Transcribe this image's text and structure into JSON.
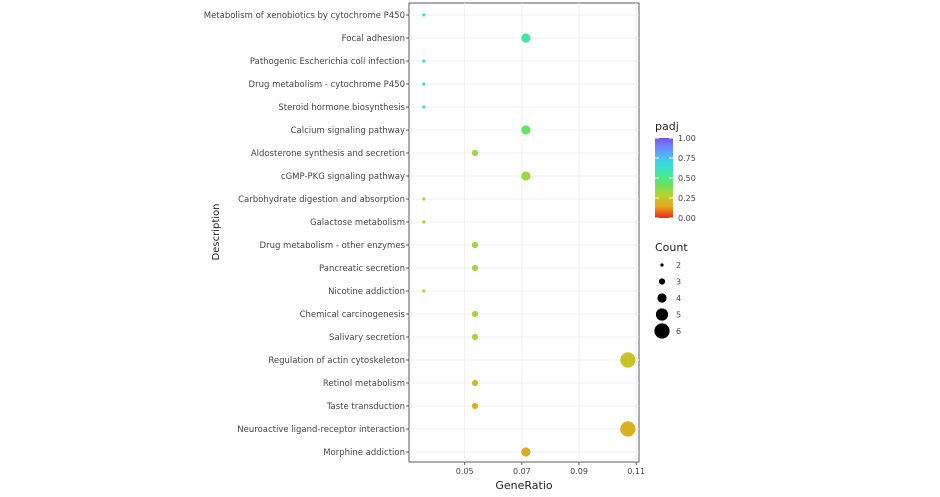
{
  "chart_data": {
    "type": "scatter",
    "xlabel": "GeneRatio",
    "ylabel": "Description",
    "xlim": [
      0.0305,
      0.111
    ],
    "x_ticks": [
      "0.05",
      "0.07",
      "0.09",
      "0.11"
    ],
    "x_tick_values": [
      0.05,
      0.07,
      0.09,
      0.11
    ],
    "grid": true,
    "legend_position": "right",
    "color_legend": {
      "title": "padj",
      "ticks": [
        "1.00",
        "0.75",
        "0.50",
        "0.25",
        "0.00"
      ],
      "tick_values": [
        1.0,
        0.75,
        0.5,
        0.25,
        0.0
      ]
    },
    "size_legend": {
      "title": "Count",
      "labels": [
        "2",
        "3",
        "4",
        "5",
        "6"
      ],
      "values": [
        2,
        3,
        4,
        5,
        6
      ]
    },
    "points": [
      {
        "description": "Metabolism of xenobiotics by cytochrome P450",
        "gene_ratio": 0.0357,
        "count": 2,
        "padj": 0.55
      },
      {
        "description": "Focal adhesion",
        "gene_ratio": 0.0714,
        "count": 4,
        "padj": 0.55
      },
      {
        "description": "Pathogenic Escherichia coli infection",
        "gene_ratio": 0.0357,
        "count": 2,
        "padj": 0.55
      },
      {
        "description": "Drug metabolism - cytochrome P450",
        "gene_ratio": 0.0357,
        "count": 2,
        "padj": 0.55
      },
      {
        "description": "Steroid hormone biosynthesis",
        "gene_ratio": 0.0357,
        "count": 2,
        "padj": 0.55
      },
      {
        "description": "Calcium signaling pathway",
        "gene_ratio": 0.0714,
        "count": 4,
        "padj": 0.44
      },
      {
        "description": "Aldosterone synthesis and secretion",
        "gene_ratio": 0.0536,
        "count": 3,
        "padj": 0.34
      },
      {
        "description": "cGMP-PKG signaling pathway",
        "gene_ratio": 0.0714,
        "count": 4,
        "padj": 0.34
      },
      {
        "description": "Carbohydrate digestion and absorption",
        "gene_ratio": 0.0357,
        "count": 2,
        "padj": 0.33
      },
      {
        "description": "Galactose metabolism",
        "gene_ratio": 0.0357,
        "count": 2,
        "padj": 0.33
      },
      {
        "description": "Drug metabolism - other enzymes",
        "gene_ratio": 0.0536,
        "count": 3,
        "padj": 0.33
      },
      {
        "description": "Pancreatic secretion",
        "gene_ratio": 0.0536,
        "count": 3,
        "padj": 0.33
      },
      {
        "description": "Nicotine addiction",
        "gene_ratio": 0.0357,
        "count": 2,
        "padj": 0.32
      },
      {
        "description": "Chemical carcinogenesis",
        "gene_ratio": 0.0536,
        "count": 3,
        "padj": 0.32
      },
      {
        "description": "Salivary secretion",
        "gene_ratio": 0.0536,
        "count": 3,
        "padj": 0.32
      },
      {
        "description": "Regulation of actin cytoskeleton",
        "gene_ratio": 0.1071,
        "count": 6,
        "padj": 0.24
      },
      {
        "description": "Retinol metabolism",
        "gene_ratio": 0.0536,
        "count": 3,
        "padj": 0.22
      },
      {
        "description": "Taste transduction",
        "gene_ratio": 0.0536,
        "count": 3,
        "padj": 0.18
      },
      {
        "description": "Neuroactive ligand-receptor interaction",
        "gene_ratio": 0.1071,
        "count": 6,
        "padj": 0.18
      },
      {
        "description": "Morphine addiction",
        "gene_ratio": 0.0714,
        "count": 4,
        "padj": 0.17
      }
    ]
  }
}
